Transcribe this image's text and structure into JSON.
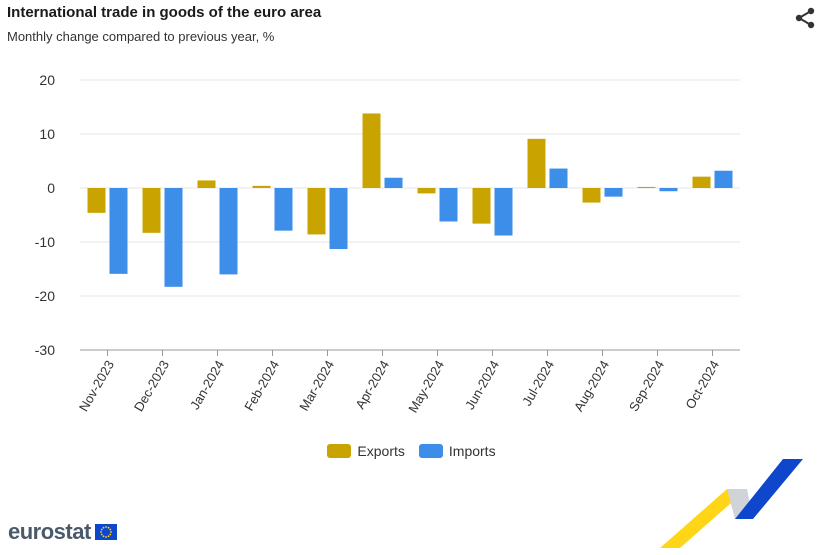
{
  "header": {
    "title": "International trade in goods of the euro area",
    "subtitle": "Monthly change compared to previous year, %"
  },
  "logo": {
    "text": "eurostat"
  },
  "icons": {
    "share": "share-icon",
    "eu_flag": "eu-flag-icon"
  },
  "colors": {
    "exports": "#c9a400",
    "imports": "#3d8ee8",
    "grid": "#e6e6e6",
    "axis": "#666666"
  },
  "chart_data": {
    "type": "bar",
    "categories": [
      "Nov-2023",
      "Dec-2023",
      "Jan-2024",
      "Feb-2024",
      "Mar-2024",
      "Apr-2024",
      "May-2024",
      "Jun-2024",
      "Jul-2024",
      "Aug-2024",
      "Sep-2024",
      "Oct-2024"
    ],
    "series": [
      {
        "name": "Exports",
        "values": [
          -4.6,
          -8.3,
          1.4,
          0.4,
          -8.6,
          13.8,
          -1.0,
          -6.6,
          9.1,
          -2.7,
          0.2,
          2.1
        ]
      },
      {
        "name": "Imports",
        "values": [
          -15.9,
          -18.3,
          -16.0,
          -7.9,
          -11.3,
          1.9,
          -6.2,
          -8.8,
          3.6,
          -1.6,
          -0.6,
          3.2
        ]
      }
    ],
    "yticks": [
      20,
      10,
      0,
      -10,
      -20,
      -30
    ],
    "ylim": [
      -30,
      20
    ],
    "grid": true,
    "legend": "bottom-center"
  }
}
